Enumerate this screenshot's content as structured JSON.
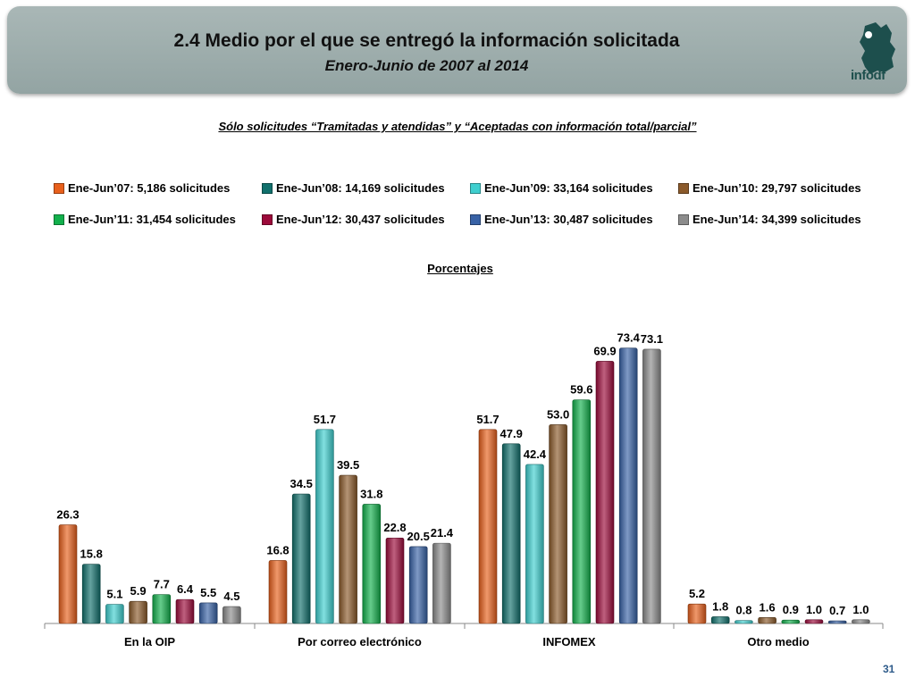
{
  "header": {
    "title": "2.4 Medio por el que se entregó la información solicitada",
    "subtitle": "Enero-Junio de 2007 al 2014",
    "logo_text": "infodf"
  },
  "note": "Sólo solicitudes “Tramitadas y atendidas” y “Aceptadas con información total/parcial”",
  "page_number": "31",
  "chart_data": {
    "type": "bar",
    "title": "",
    "units_label": "Porcentajes",
    "xlabel": "",
    "ylabel": "",
    "ylim": [
      0,
      80
    ],
    "grid": false,
    "legend_position": "top",
    "categories": [
      "En la OIP",
      "Por correo electrónico",
      "INFOMEX",
      "Otro medio"
    ],
    "series": [
      {
        "name": "Ene-Jun’07: 5,186 solicitudes",
        "color": "#e8601c",
        "values": [
          26.3,
          16.8,
          51.7,
          5.2
        ]
      },
      {
        "name": "Ene-Jun’08: 14,169 solicitudes",
        "color": "#11706c",
        "values": [
          15.8,
          34.5,
          47.9,
          1.8
        ]
      },
      {
        "name": "Ene-Jun’09: 33,164 solicitudes",
        "color": "#3fcfcf",
        "values": [
          5.1,
          51.7,
          42.4,
          0.8
        ]
      },
      {
        "name": "Ene-Jun’10: 29,797 solicitudes",
        "color": "#8b5a2b",
        "values": [
          5.9,
          39.5,
          53.0,
          1.6
        ]
      },
      {
        "name": "Ene-Jun’11: 31,454 solicitudes",
        "color": "#12b04c",
        "values": [
          7.7,
          31.8,
          59.6,
          0.9
        ]
      },
      {
        "name": "Ene-Jun’12: 30,437 solicitudes",
        "color": "#9c0a3a",
        "values": [
          6.4,
          22.8,
          69.9,
          1.0
        ]
      },
      {
        "name": "Ene-Jun’13: 30,487 solicitudes",
        "color": "#3862a6",
        "values": [
          5.5,
          20.5,
          73.4,
          0.7
        ]
      },
      {
        "name": "Ene-Jun’14: 34,399 solicitudes",
        "color": "#8c8c8c",
        "values": [
          4.5,
          21.4,
          73.1,
          1.0
        ]
      }
    ]
  }
}
